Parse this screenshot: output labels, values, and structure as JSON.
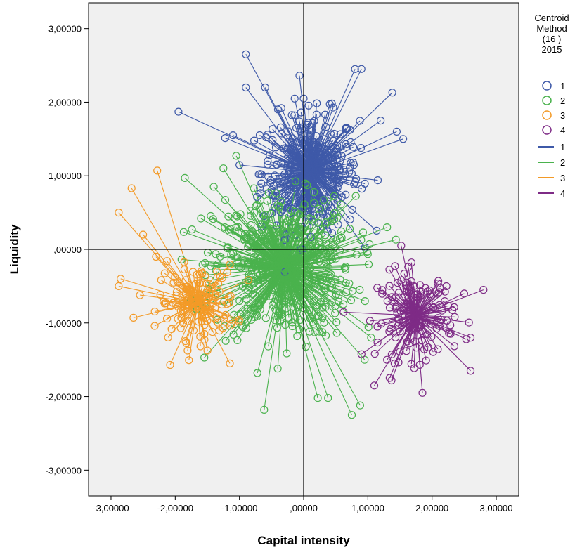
{
  "chart_data": {
    "type": "scatter",
    "xlabel": "Capital intensity",
    "ylabel": "Liquidity",
    "xlim": [
      -3.35,
      3.35
    ],
    "ylim": [
      -3.35,
      3.35
    ],
    "x_ticks": [
      -3,
      -2,
      -1,
      0,
      1,
      2,
      3
    ],
    "y_ticks": [
      -3,
      -2,
      -1,
      0,
      1,
      2,
      3
    ],
    "x_tick_labels": [
      "-3,00000",
      "-2,00000",
      "-1,00000",
      ",00000",
      "1,00000",
      "2,00000",
      "3,00000"
    ],
    "y_tick_labels": [
      "-3,00000",
      "-2,00000",
      "-1,00000",
      ",00000",
      "1,00000",
      "2,00000",
      "3,00000"
    ],
    "reference_lines": {
      "x": 0,
      "y": 0
    },
    "grid": false,
    "legend": {
      "title_lines": [
        "Centroid",
        "Method",
        "(16 )",
        "2015"
      ],
      "position": "right",
      "marker_entries": [
        "1",
        "2",
        "3",
        "4"
      ],
      "line_entries": [
        "1",
        "2",
        "3",
        "4"
      ]
    },
    "series": [
      {
        "name": "1",
        "color": "#3e59a8",
        "centroid": [
          0.1,
          1.05
        ],
        "spread": [
          0.38,
          0.4
        ],
        "count": 380,
        "points": [
          [
            -0.9,
            2.65
          ],
          [
            -1.95,
            1.87
          ],
          [
            0.8,
            2.45
          ],
          [
            0.9,
            2.45
          ],
          [
            1.38,
            2.13
          ],
          [
            1.55,
            1.5
          ],
          [
            -0.6,
            2.2
          ],
          [
            -0.9,
            2.2
          ],
          [
            1.2,
            1.75
          ],
          [
            -1.1,
            1.55
          ],
          [
            1.45,
            1.6
          ],
          [
            0.0,
            2.05
          ],
          [
            -0.4,
            1.9
          ]
        ]
      },
      {
        "name": "2",
        "color": "#4ab24d",
        "centroid": [
          -0.3,
          -0.25
        ],
        "spread": [
          0.55,
          0.48
        ],
        "count": 520,
        "points": [
          [
            -1.85,
            0.97
          ],
          [
            -1.25,
            1.1
          ],
          [
            -1.05,
            1.27
          ],
          [
            0.75,
            -2.25
          ],
          [
            0.22,
            -2.02
          ],
          [
            0.38,
            -2.02
          ],
          [
            0.88,
            -2.12
          ],
          [
            -0.72,
            -1.68
          ],
          [
            1.3,
            0.3
          ],
          [
            -1.6,
            0.42
          ],
          [
            0.95,
            -1.5
          ],
          [
            1.05,
            -1.2
          ],
          [
            -1.4,
            0.85
          ]
        ]
      },
      {
        "name": "3",
        "color": "#f39a27",
        "centroid": [
          -1.65,
          -0.72
        ],
        "spread": [
          0.3,
          0.25
        ],
        "count": 150,
        "points": [
          [
            -2.28,
            1.07
          ],
          [
            -2.68,
            0.83
          ],
          [
            -2.88,
            0.5
          ],
          [
            -2.88,
            -0.5
          ],
          [
            -2.08,
            -1.57
          ],
          [
            -2.85,
            -0.4
          ],
          [
            -2.65,
            -0.93
          ],
          [
            -1.15,
            -1.55
          ],
          [
            -2.3,
            -0.1
          ],
          [
            -2.5,
            0.2
          ]
        ]
      },
      {
        "name": "4",
        "color": "#7e2b86",
        "centroid": [
          1.75,
          -0.9
        ],
        "spread": [
          0.3,
          0.3
        ],
        "count": 150,
        "points": [
          [
            2.8,
            -0.55
          ],
          [
            2.6,
            -1.65
          ],
          [
            1.1,
            -1.85
          ],
          [
            1.52,
            0.05
          ],
          [
            1.85,
            -1.95
          ],
          [
            2.5,
            -0.6
          ],
          [
            1.3,
            -1.5
          ],
          [
            1.15,
            -1.05
          ],
          [
            2.6,
            -1.2
          ]
        ]
      }
    ]
  }
}
